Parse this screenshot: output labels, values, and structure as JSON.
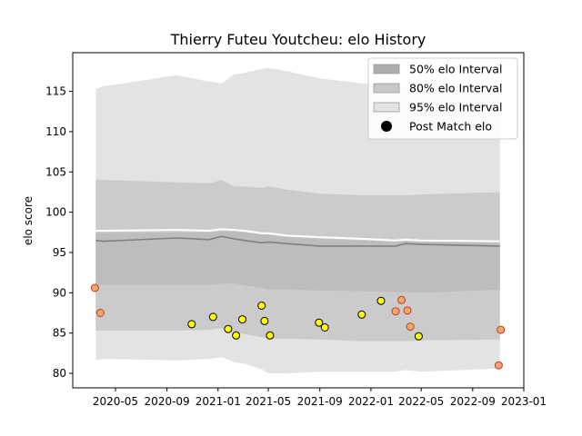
{
  "chart_data": {
    "type": "area",
    "title": "Thierry Futeu Youtcheu: elo History",
    "xlabel": "",
    "ylabel": "elo score",
    "xlim": [
      "2020-01-20",
      "2023-01-01"
    ],
    "ylim": [
      78.2,
      119.8
    ],
    "x_ticks": [
      "2020-05",
      "2020-09",
      "2021-01",
      "2021-05",
      "2021-09",
      "2022-01",
      "2022-05",
      "2022-09",
      "2023-01"
    ],
    "x_tick_dates": [
      "2020-05-01",
      "2020-09-01",
      "2021-01-01",
      "2021-05-01",
      "2021-09-01",
      "2022-01-01",
      "2022-05-01",
      "2022-09-01",
      "2023-01-01"
    ],
    "y_ticks": [
      80,
      85,
      90,
      95,
      100,
      105,
      110,
      115
    ],
    "grid": false,
    "legend_position": "top-right",
    "colors": {
      "band95": "#e3e3e3",
      "band80": "#cbcbcb",
      "band50": "#bdbdbd",
      "mean": "#808080",
      "upper": "#ffffff",
      "point_fill": "#ffff00",
      "point_stroke": "#000000",
      "outlier_fill": "#f0a868",
      "outlier_stroke": "#c0392b"
    },
    "legend": [
      {
        "label": "50% elo Interval",
        "kind": "patch",
        "color": "#adadad"
      },
      {
        "label": "80% elo Interval",
        "kind": "patch",
        "color": "#c8c8c8"
      },
      {
        "label": "95% elo Interval",
        "kind": "patch",
        "color": "#e3e3e3"
      },
      {
        "label": "Post Match elo",
        "kind": "dot",
        "color": "#000000"
      }
    ],
    "bands": {
      "dates": [
        "2020-03-15",
        "2020-04-01",
        "2020-09-25",
        "2020-12-10",
        "2021-01-10",
        "2021-02-08",
        "2021-03-05",
        "2021-04-15",
        "2021-05-01",
        "2021-06-15",
        "2021-09-01",
        "2021-12-10",
        "2022-03-01",
        "2022-03-25",
        "2022-05-01",
        "2022-11-05"
      ],
      "mean": [
        96.5,
        96.4,
        96.8,
        96.6,
        97.0,
        96.7,
        96.5,
        96.2,
        96.3,
        96.1,
        95.8,
        95.8,
        95.8,
        96.1,
        96.0,
        95.8
      ],
      "upper_line": [
        97.7,
        97.7,
        97.8,
        97.7,
        97.9,
        97.8,
        97.7,
        97.4,
        97.4,
        97.1,
        96.9,
        96.7,
        96.5,
        96.6,
        96.5,
        96.4
      ],
      "p50_low": [
        91.0,
        91.0,
        91.0,
        91.0,
        91.1,
        91.2,
        90.9,
        90.6,
        90.4,
        90.4,
        90.3,
        90.2,
        90.1,
        90.1,
        90.0,
        90.4
      ],
      "p50_high": [
        97.4,
        97.4,
        97.5,
        97.5,
        97.6,
        97.6,
        97.5,
        97.2,
        97.2,
        96.9,
        96.7,
        96.5,
        96.3,
        96.4,
        96.3,
        96.2
      ],
      "p80_low": [
        85.3,
        85.3,
        85.3,
        85.4,
        85.6,
        85.1,
        84.9,
        84.5,
        84.3,
        84.3,
        84.2,
        84.0,
        84.0,
        84.0,
        84.1,
        84.2
      ],
      "p80_high": [
        104.1,
        104.0,
        103.7,
        103.6,
        104.0,
        103.2,
        103.2,
        103.0,
        103.2,
        102.8,
        102.3,
        102.1,
        102.1,
        102.1,
        102.2,
        102.5
      ],
      "p95_low": [
        81.6,
        81.8,
        81.6,
        81.8,
        82.0,
        81.4,
        81.2,
        80.5,
        80.0,
        80.0,
        80.2,
        80.2,
        80.2,
        80.4,
        80.2,
        80.6
      ],
      "p95_high": [
        115.3,
        115.6,
        117.0,
        116.2,
        116.0,
        117.1,
        117.3,
        117.8,
        117.9,
        117.5,
        116.6,
        116.0,
        115.5,
        115.5,
        115.5,
        115.9
      ]
    },
    "series": [
      {
        "name": "Post Match elo",
        "points": [
          {
            "date": "2020-03-13",
            "elo": 90.6,
            "style": "outlier"
          },
          {
            "date": "2020-03-26",
            "elo": 87.5,
            "style": "outlier"
          },
          {
            "date": "2020-10-30",
            "elo": 86.1,
            "style": "match"
          },
          {
            "date": "2020-12-20",
            "elo": 87.0,
            "style": "match"
          },
          {
            "date": "2021-01-25",
            "elo": 85.5,
            "style": "match"
          },
          {
            "date": "2021-02-13",
            "elo": 84.7,
            "style": "match"
          },
          {
            "date": "2021-02-28",
            "elo": 86.7,
            "style": "match"
          },
          {
            "date": "2021-04-15",
            "elo": 88.4,
            "style": "match"
          },
          {
            "date": "2021-04-22",
            "elo": 86.5,
            "style": "match"
          },
          {
            "date": "2021-05-05",
            "elo": 84.7,
            "style": "match"
          },
          {
            "date": "2021-08-30",
            "elo": 86.3,
            "style": "match"
          },
          {
            "date": "2021-09-13",
            "elo": 85.7,
            "style": "match"
          },
          {
            "date": "2021-12-10",
            "elo": 87.3,
            "style": "match"
          },
          {
            "date": "2022-01-25",
            "elo": 89.0,
            "style": "match"
          },
          {
            "date": "2022-03-01",
            "elo": 87.7,
            "style": "outlier"
          },
          {
            "date": "2022-03-15",
            "elo": 89.1,
            "style": "outlier"
          },
          {
            "date": "2022-03-29",
            "elo": 87.8,
            "style": "outlier"
          },
          {
            "date": "2022-04-05",
            "elo": 85.8,
            "style": "outlier"
          },
          {
            "date": "2022-04-25",
            "elo": 84.6,
            "style": "match"
          },
          {
            "date": "2022-11-02",
            "elo": 81.0,
            "style": "outlier"
          },
          {
            "date": "2022-11-07",
            "elo": 85.4,
            "style": "outlier"
          }
        ]
      }
    ]
  }
}
